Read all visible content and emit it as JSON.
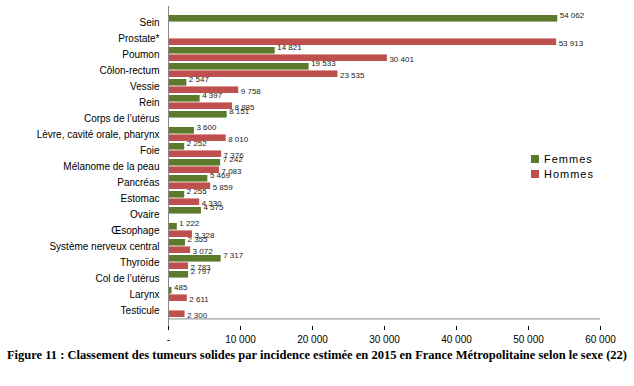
{
  "chart_data": {
    "type": "bar",
    "orientation": "horizontal",
    "title": "Figure 11 : Classement des tumeurs solides par incidence estimée en 2015 en France Métropolitaine selon le sexe (22)",
    "categories": [
      "Sein",
      "Prostate*",
      "Poumon",
      "Côlon-rectum",
      "Vessie",
      "Rein",
      "Corps de l’utérus",
      "Lèvre, cavité orale, pharynx",
      "Foie",
      "Mélanome de la peau",
      "Pancréas",
      "Estomac",
      "Ovaire",
      "Œsophage",
      "Système nerveux central",
      "Thyroïde",
      "Col de l’utérus",
      "Larynx",
      "Testicule"
    ],
    "series": [
      {
        "name": "Femmes",
        "color": "#5b7a2b",
        "values": [
          54062,
          null,
          14821,
          19533,
          2547,
          4397,
          8151,
          3600,
          2252,
          7242,
          5469,
          2255,
          4575,
          1222,
          2355,
          7317,
          2797,
          485,
          null
        ],
        "value_labels": [
          "54 062",
          null,
          "14 821",
          "19 533",
          "2 547",
          "4 397",
          "8 151",
          "3 600",
          "2 252",
          "7 242",
          "5 469",
          "2 255",
          "4 575",
          "1 222",
          "2 355",
          "7 317",
          "2 797",
          "485",
          null
        ]
      },
      {
        "name": "Hommes",
        "color": "#c0504d",
        "values": [
          null,
          53913,
          30401,
          23535,
          9758,
          8885,
          null,
          8010,
          7376,
          7083,
          5859,
          4330,
          null,
          3328,
          3072,
          2783,
          null,
          2611,
          2300
        ],
        "value_labels": [
          null,
          "53 913",
          "30 401",
          "23 535",
          "9 758",
          "8 885",
          null,
          "8 010",
          "7 376",
          "7 083",
          "5 859",
          "4 330",
          null,
          "3 328",
          "3 072",
          "2 783",
          null,
          "2 611",
          "2 300"
        ]
      }
    ],
    "xlim": [
      0,
      60000
    ],
    "xticks": [
      {
        "value": 0,
        "label": "-"
      },
      {
        "value": 10000,
        "label": "10 000"
      },
      {
        "value": 20000,
        "label": "20 000"
      },
      {
        "value": 30000,
        "label": "30 000"
      },
      {
        "value": 40000,
        "label": "40 000"
      },
      {
        "value": 50000,
        "label": "50 000"
      },
      {
        "value": 60000,
        "label": "60 000"
      }
    ],
    "grid": false,
    "legend": "right",
    "data_labels": true
  }
}
